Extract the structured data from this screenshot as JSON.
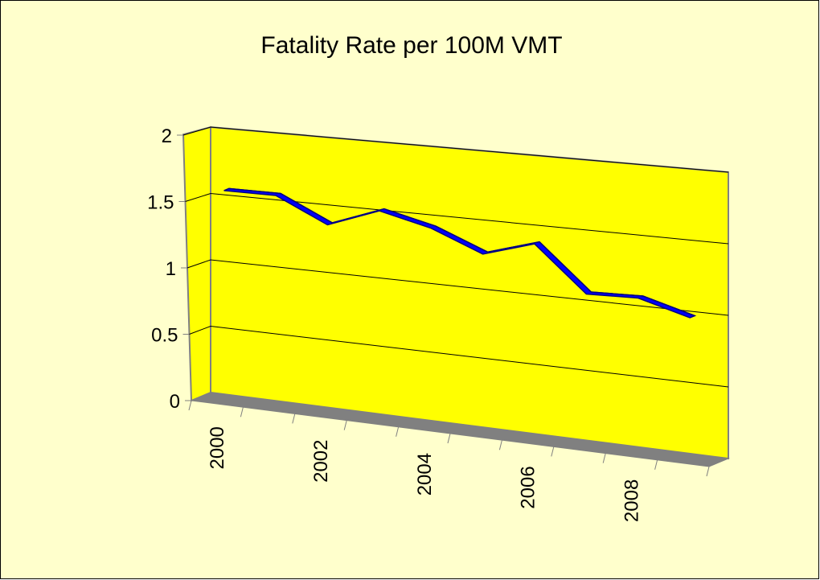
{
  "chart_data": {
    "type": "line",
    "title": "Fatality Rate per 100M VMT",
    "categories": [
      "2000",
      null,
      "2002",
      null,
      "2004",
      null,
      "2006",
      null,
      "2008",
      null
    ],
    "series": [
      {
        "name": "Fatality Rate",
        "color": "#0000ff",
        "values": [
          1.58,
          1.58,
          1.4,
          1.54,
          1.45,
          1.3,
          1.41,
          1.09,
          1.1,
          1.0
        ]
      }
    ],
    "ylim": [
      0,
      2
    ],
    "yticks": [
      0,
      0.5,
      1,
      1.5,
      2
    ],
    "grid": true
  }
}
